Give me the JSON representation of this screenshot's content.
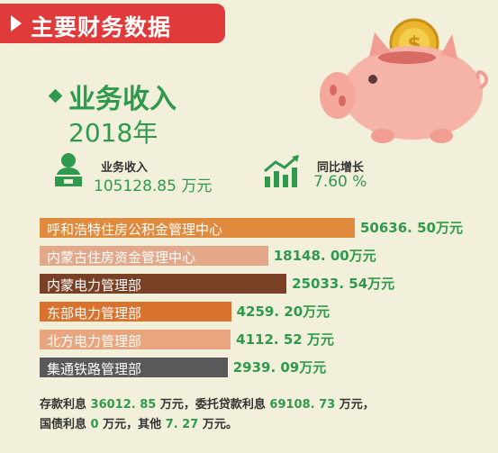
{
  "header": {
    "title": "主要财务数据"
  },
  "section": {
    "title": "业务收入",
    "year": "2018年"
  },
  "stats": {
    "income_label": "业务收入",
    "income_value": "105128.85 万元",
    "growth_label": "同比增长",
    "growth_value": "7.60 %"
  },
  "chart_data": {
    "type": "bar",
    "orientation": "horizontal",
    "unit": "万元",
    "categories": [
      "呼和浩特住房公积金管理中心",
      "内蒙古住房资金管理中心",
      "内蒙电力管理部",
      "东部电力管理部",
      "北方电力管理部",
      "集通铁路管理部"
    ],
    "values": [
      50636.5,
      18148.0,
      25033.54,
      4259.2,
      4112.52,
      2939.09
    ],
    "value_labels": [
      "50636. 50万元",
      "18148. 00万元",
      "25033. 54万元",
      "4259. 20万元",
      "4112. 52 万元",
      "2939. 09万元"
    ],
    "bar_colors": [
      "#e08a3e",
      "#e3a889",
      "#7a4026",
      "#d8722c",
      "#e9a57d",
      "#59595c"
    ]
  },
  "footer": {
    "line1_a": "存款利息",
    "line1_n1": "36012. 85",
    "line1_b": "万元，委托贷款利息",
    "line1_n2": "69108. 73",
    "line1_c": "万元，",
    "line2_a": "国债利息",
    "line2_n1": "0",
    "line2_b": "万元，其他",
    "line2_n2": "7. 27",
    "line2_c": "万元。"
  }
}
